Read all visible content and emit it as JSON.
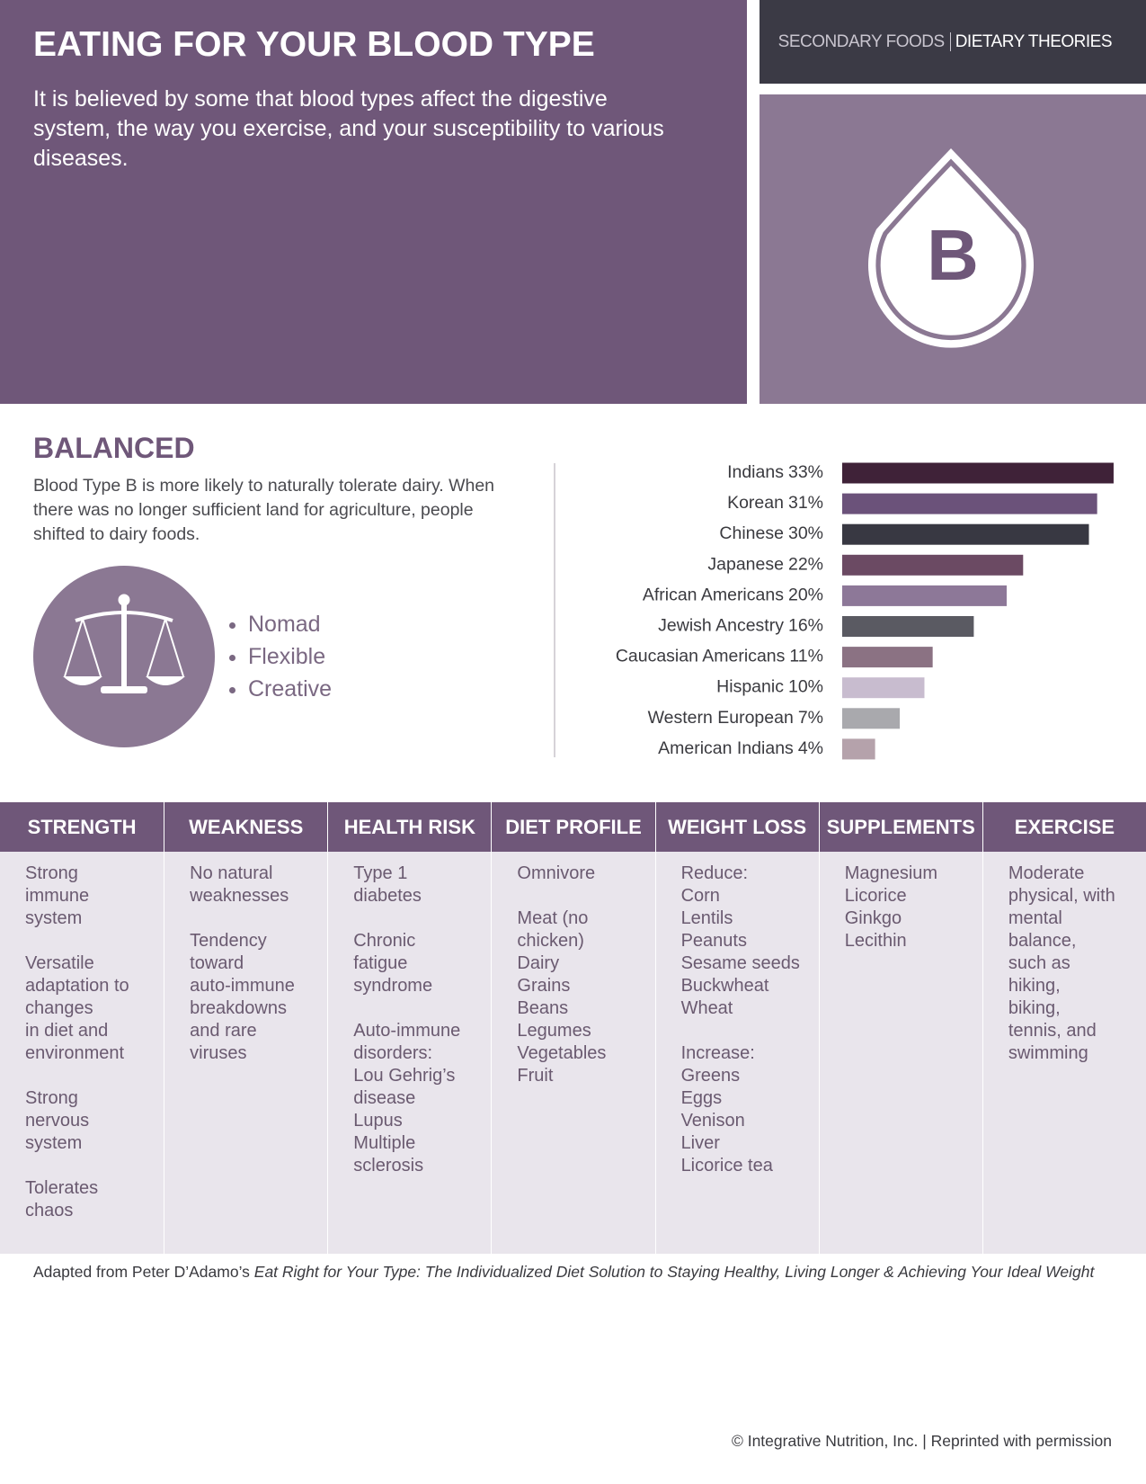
{
  "header": {
    "title": "EATING FOR YOUR BLOOD TYPE",
    "subtitle": "It is believed by some that blood types affect the digestive system, the way you exercise, and your susceptibility to various diseases.",
    "breadcrumb": [
      "SECONDARY FOODS",
      "DIETARY THEORIES"
    ],
    "blood_type": "B"
  },
  "profile": {
    "heading": "BALANCED",
    "text": "Blood Type B is more likely to naturally tolerate dairy. When there was no longer sufficient land for agriculture, people shifted to dairy foods.",
    "traits": [
      "Nomad",
      "Flexible",
      "Creative"
    ]
  },
  "chart_data": {
    "type": "bar",
    "orientation": "horizontal",
    "categories": [
      "Indians",
      "Korean",
      "Chinese",
      "Japanese",
      "African Americans",
      "Jewish Ancestry",
      "Caucasian Americans",
      "Hispanic",
      "Western European",
      "American Indians"
    ],
    "values": [
      33,
      31,
      30,
      22,
      20,
      16,
      11,
      10,
      7,
      4
    ],
    "value_labels": [
      "33%",
      "31%",
      "30%",
      "22%",
      "20%",
      "16%",
      "11%",
      "10%",
      "7%",
      "4%"
    ],
    "colors": [
      "#3f2238",
      "#6b527a",
      "#383842",
      "#6b4a63",
      "#8d7898",
      "#5a5a62",
      "#8b7283",
      "#c8bccf",
      "#a9a9ad",
      "#b5a2ab"
    ]
  },
  "table": {
    "columns": [
      {
        "heading": "STRENGTH",
        "groups": [
          [
            "Strong",
            "immune",
            "system"
          ],
          [
            "Versatile",
            "adaptation to",
            "changes",
            "in diet and",
            "environment"
          ],
          [
            "Strong",
            "nervous",
            "system"
          ],
          [
            "Tolerates",
            "chaos"
          ]
        ]
      },
      {
        "heading": "WEAKNESS",
        "groups": [
          [
            "No natural",
            "weaknesses"
          ],
          [
            "Tendency",
            "toward",
            "auto-immune",
            "breakdowns",
            "and rare",
            "viruses"
          ]
        ]
      },
      {
        "heading": "HEALTH RISK",
        "groups": [
          [
            "Type 1",
            "diabetes"
          ],
          [
            "Chronic",
            "fatigue",
            "syndrome"
          ],
          [
            "Auto-immune",
            "disorders:",
            "Lou Gehrig’s",
            "disease",
            "Lupus",
            "Multiple",
            "sclerosis"
          ]
        ]
      },
      {
        "heading": "DIET PROFILE",
        "groups": [
          [
            "Omnivore"
          ],
          [
            "Meat (no",
            "chicken)",
            "Dairy",
            "Grains",
            "Beans",
            "Legumes",
            "Vegetables",
            "Fruit"
          ]
        ]
      },
      {
        "heading": "WEIGHT LOSS",
        "groups": [
          [
            "Reduce:",
            "Corn",
            "Lentils",
            "Peanuts",
            "Sesame seeds",
            "Buckwheat",
            "Wheat"
          ],
          [
            "Increase:",
            "Greens",
            "Eggs",
            "Venison",
            "Liver",
            "Licorice tea"
          ]
        ]
      },
      {
        "heading": "SUPPLEMENTS",
        "groups": [
          [
            "Magnesium",
            "Licorice",
            "Ginkgo",
            "Lecithin"
          ]
        ]
      },
      {
        "heading": "EXERCISE",
        "groups": [
          [
            "Moderate",
            "physical, with",
            "mental",
            "balance,",
            "such as",
            "hiking,",
            "biking,",
            "tennis, and",
            "swimming"
          ]
        ]
      }
    ]
  },
  "footnote": {
    "prefix": "Adapted from Peter D’Adamo’s ",
    "title": "Eat Right for Your Type: The Individualized Diet Solution to Staying Healthy, Living Longer & Achieving Your Ideal Weight"
  },
  "copyright": "© Integrative Nutrition, Inc. | Reprinted with permission"
}
